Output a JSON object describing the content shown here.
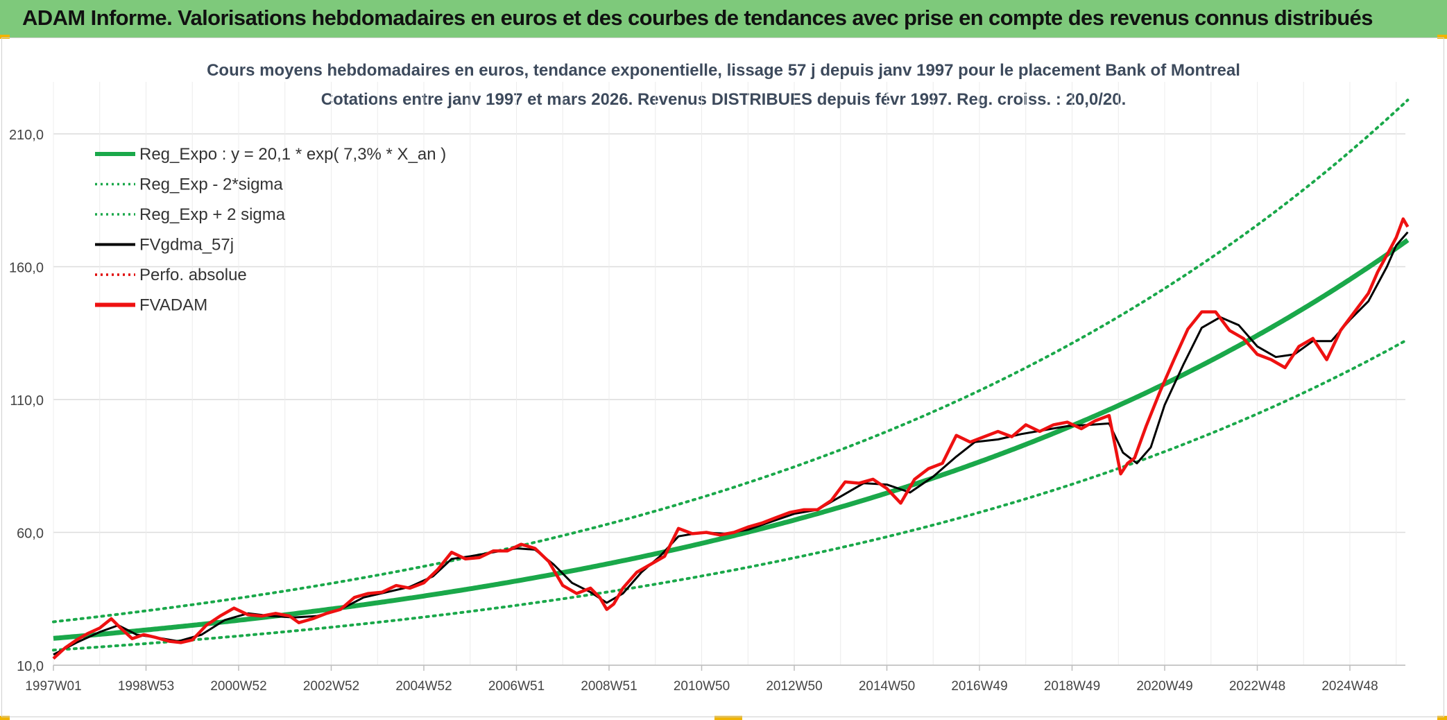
{
  "header": {
    "title": "ADAM Informe. Valorisations hebdomadaires en euros et des courbes de tendances avec prise en compte des revenus connus distribués"
  },
  "colors": {
    "header_bg": "#7ec97b",
    "reg_expo": "#1aa84a",
    "sigma_band": "#1aa84a",
    "fvgdma": "#000000",
    "perfo": "#e00000",
    "fvadam": "#ee1111",
    "grid": "#dcdcdc"
  },
  "chart_data": {
    "type": "line",
    "title": "Cours moyens hebdomadaires en euros, tendance exponentielle, lissage 57 j depuis janv 1997 pour le placement Bank of Montreal",
    "subtitle": "Cotations entre janv 1997 et mars 2026. Revenus DISTRIBUES depuis févr 1997. Reg. croiss. : 20,0/20.",
    "xlabel": "",
    "ylabel": "",
    "ylim": [
      10,
      210
    ],
    "yticks": [
      "10,0",
      "60,0",
      "110,0",
      "160,0",
      "210,0"
    ],
    "ytick_values": [
      10,
      60,
      110,
      160,
      210
    ],
    "xticks": [
      "1997W01",
      "1998W53",
      "2000W52",
      "2002W52",
      "2004W52",
      "2006W51",
      "2008W51",
      "2010W50",
      "2012W50",
      "2014W50",
      "2016W49",
      "2018W49",
      "2020W49",
      "2022W48",
      "2024W48"
    ],
    "xtick_years": [
      1997.0,
      1999.0,
      2001.0,
      2003.0,
      2005.0,
      2007.0,
      2009.0,
      2011.0,
      2013.0,
      2015.0,
      2017.0,
      2019.0,
      2021.0,
      2023.0,
      2025.0
    ],
    "xlim": [
      1997.0,
      2026.25
    ],
    "grid": true,
    "legend_position": "top-left",
    "legend": [
      {
        "label": "Reg_Expo : y = 20,1 * exp( 7,3% *  X_an )",
        "style": "solid-thick",
        "color": "#1aa84a"
      },
      {
        "label": "Reg_Exp - 2*sigma",
        "style": "dotted",
        "color": "#1aa84a"
      },
      {
        "label": "Reg_Exp + 2 sigma",
        "style": "dotted",
        "color": "#1aa84a"
      },
      {
        "label": "FVgdma_57j",
        "style": "solid",
        "color": "#000000"
      },
      {
        "label": "Perfo. absolue",
        "style": "dotted",
        "color": "#e00000"
      },
      {
        "label": "FVADAM",
        "style": "solid-thick",
        "color": "#ee1111"
      }
    ],
    "regression": {
      "a": 20.1,
      "rate": 0.073,
      "t0": 1997.0
    },
    "sigma_band": {
      "lower_factor": 0.78,
      "upper_factor": 1.31
    },
    "series": [
      {
        "name": "FVADAM",
        "x": [
          1997.0,
          1997.25,
          1997.5,
          1997.75,
          1998.0,
          1998.25,
          1998.45,
          1998.7,
          1998.95,
          1999.2,
          1999.5,
          1999.75,
          2000.0,
          2000.3,
          2000.6,
          2000.9,
          2001.2,
          2001.5,
          2001.8,
          2002.1,
          2002.3,
          2002.6,
          2002.9,
          2003.2,
          2003.5,
          2003.8,
          2004.1,
          2004.4,
          2004.7,
          2005.0,
          2005.3,
          2005.6,
          2005.9,
          2006.2,
          2006.5,
          2006.8,
          2007.1,
          2007.4,
          2007.7,
          2008.0,
          2008.3,
          2008.6,
          2008.8,
          2008.95,
          2009.1,
          2009.3,
          2009.6,
          2009.9,
          2010.2,
          2010.5,
          2010.8,
          2011.1,
          2011.4,
          2011.7,
          2012.0,
          2012.3,
          2012.6,
          2012.9,
          2013.2,
          2013.5,
          2013.8,
          2014.1,
          2014.4,
          2014.7,
          2015.0,
          2015.3,
          2015.6,
          2015.9,
          2016.2,
          2016.5,
          2016.8,
          2017.1,
          2017.4,
          2017.7,
          2018.0,
          2018.3,
          2018.6,
          2018.9,
          2019.2,
          2019.5,
          2019.8,
          2020.05,
          2020.2,
          2020.35,
          2020.6,
          2020.9,
          2021.2,
          2021.5,
          2021.8,
          2022.1,
          2022.4,
          2022.7,
          2023.0,
          2023.3,
          2023.6,
          2023.9,
          2024.2,
          2024.5,
          2024.8,
          2025.1,
          2025.4,
          2025.6,
          2025.85,
          2026.0,
          2026.15,
          2026.25
        ],
        "values": [
          12.5,
          16.5,
          19.5,
          22.0,
          24.0,
          27.5,
          24.0,
          20.0,
          21.5,
          20.5,
          19.0,
          18.5,
          19.5,
          25.0,
          28.5,
          31.5,
          29.0,
          28.5,
          29.5,
          28.5,
          26.0,
          27.5,
          29.5,
          31.0,
          35.5,
          37.0,
          37.5,
          40.0,
          39.0,
          41.0,
          46.0,
          52.5,
          50.0,
          50.5,
          53.0,
          53.0,
          55.5,
          54.0,
          49.0,
          40.0,
          37.0,
          39.0,
          35.5,
          31.0,
          33.0,
          39.0,
          45.0,
          48.0,
          51.0,
          61.5,
          59.5,
          60.0,
          59.0,
          60.0,
          62.0,
          63.5,
          65.5,
          67.5,
          68.5,
          68.5,
          72.0,
          79.0,
          78.5,
          80.0,
          76.5,
          71.0,
          80.0,
          84.0,
          86.0,
          96.5,
          94.0,
          96.0,
          98.0,
          96.0,
          100.5,
          98.0,
          100.5,
          101.5,
          99.0,
          102.0,
          104.0,
          82.0,
          86.0,
          88.0,
          100.0,
          113.0,
          125.0,
          136.5,
          143.0,
          143.0,
          136.0,
          133.0,
          127.0,
          125.0,
          122.0,
          130.0,
          133.0,
          125.0,
          136.0,
          143.0,
          150.0,
          158.0,
          166.0,
          171.0,
          178.0,
          175.0
        ]
      },
      {
        "name": "FVgdma_57j",
        "x": [
          1997.0,
          1997.5,
          1998.0,
          1998.4,
          1998.8,
          1999.2,
          1999.7,
          2000.2,
          2000.7,
          2001.2,
          2001.7,
          2002.2,
          2002.7,
          2003.2,
          2003.7,
          2004.2,
          2004.7,
          2005.2,
          2005.6,
          2006.0,
          2006.5,
          2007.0,
          2007.4,
          2007.8,
          2008.2,
          2008.6,
          2008.95,
          2009.3,
          2009.7,
          2010.1,
          2010.5,
          2011.0,
          2011.5,
          2012.0,
          2012.5,
          2013.0,
          2013.5,
          2014.0,
          2014.5,
          2015.0,
          2015.5,
          2016.0,
          2016.5,
          2016.9,
          2017.4,
          2017.9,
          2018.4,
          2018.9,
          2019.4,
          2019.8,
          2020.1,
          2020.4,
          2020.7,
          2021.0,
          2021.4,
          2021.8,
          2022.2,
          2022.6,
          2023.0,
          2023.4,
          2023.8,
          2024.2,
          2024.6,
          2025.0,
          2025.4,
          2025.8,
          2026.0,
          2026.25
        ],
        "values": [
          14.0,
          18.5,
          22.5,
          25.0,
          21.5,
          20.5,
          19.0,
          21.5,
          27.0,
          29.5,
          28.5,
          28.0,
          28.5,
          31.0,
          35.5,
          37.5,
          39.5,
          43.5,
          50.0,
          51.0,
          52.5,
          54.0,
          53.5,
          48.0,
          41.0,
          37.5,
          33.5,
          37.0,
          45.0,
          51.0,
          58.5,
          60.0,
          59.5,
          61.0,
          64.0,
          67.0,
          68.5,
          73.5,
          78.5,
          78.0,
          75.0,
          81.0,
          88.5,
          94.0,
          95.0,
          97.0,
          98.5,
          100.0,
          100.5,
          101.0,
          90.0,
          86.0,
          92.0,
          108.0,
          123.0,
          137.0,
          141.0,
          138.0,
          130.0,
          126.0,
          127.0,
          132.0,
          132.0,
          140.0,
          147.0,
          160.0,
          168.0,
          173.0
        ]
      }
    ]
  }
}
